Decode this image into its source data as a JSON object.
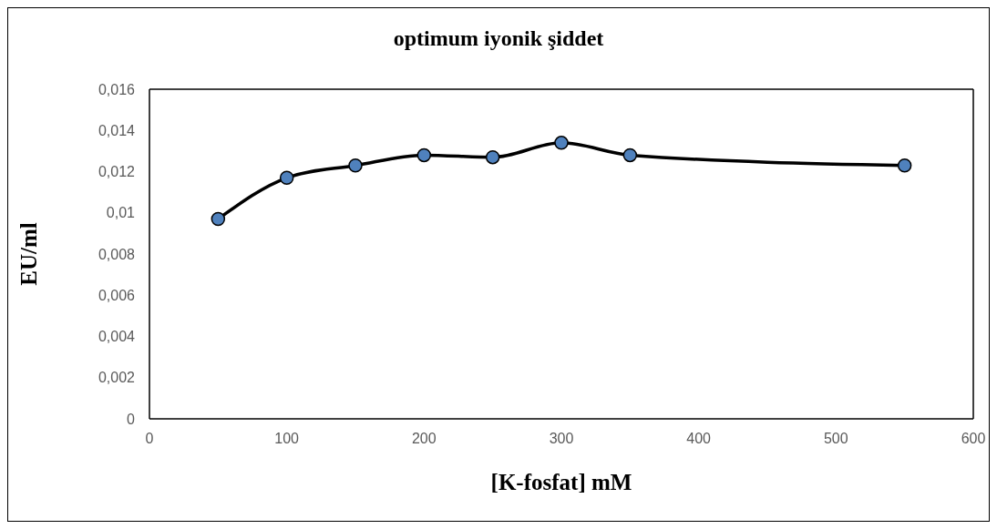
{
  "chart_data": {
    "type": "line",
    "title": "optimum iyonik şiddet",
    "xlabel": "[K-fosfat] mM",
    "ylabel": "EU/ml",
    "x": [
      50,
      100,
      150,
      200,
      250,
      300,
      350,
      550
    ],
    "series": [
      {
        "color": "#000000",
        "colors": [
          "#4f81bd",
          "#4f81bd",
          "#4f81bd",
          "#4f81bd",
          "#4f81bd",
          "#4f81bd",
          "#4f81bd",
          "#4f81bd"
        ],
        "values": [
          0.0097,
          0.0117,
          0.0123,
          0.0128,
          0.0127,
          0.0134,
          0.0128,
          0.0123
        ]
      }
    ],
    "xlim": [
      0,
      600
    ],
    "xticks": [
      0,
      100,
      200,
      300,
      400,
      500,
      600
    ],
    "ylim": [
      0,
      0.016
    ],
    "yticks": [
      0,
      {
        "value": 0.002,
        "label": "0,002"
      },
      {
        "value": 0.004,
        "label": "0,004"
      },
      {
        "value": 0.006,
        "label": "0,006"
      },
      {
        "value": 0.008,
        "label": "0,008"
      },
      {
        "value": 0.01,
        "label": "0,01"
      },
      {
        "value": 0.012,
        "label": "0,012"
      },
      {
        "value": 0.014,
        "label": "0,014"
      },
      {
        "value": 0.016,
        "label": "0,016"
      }
    ],
    "grid": false,
    "legend": false,
    "marker": "circle",
    "line_style": "solid"
  }
}
